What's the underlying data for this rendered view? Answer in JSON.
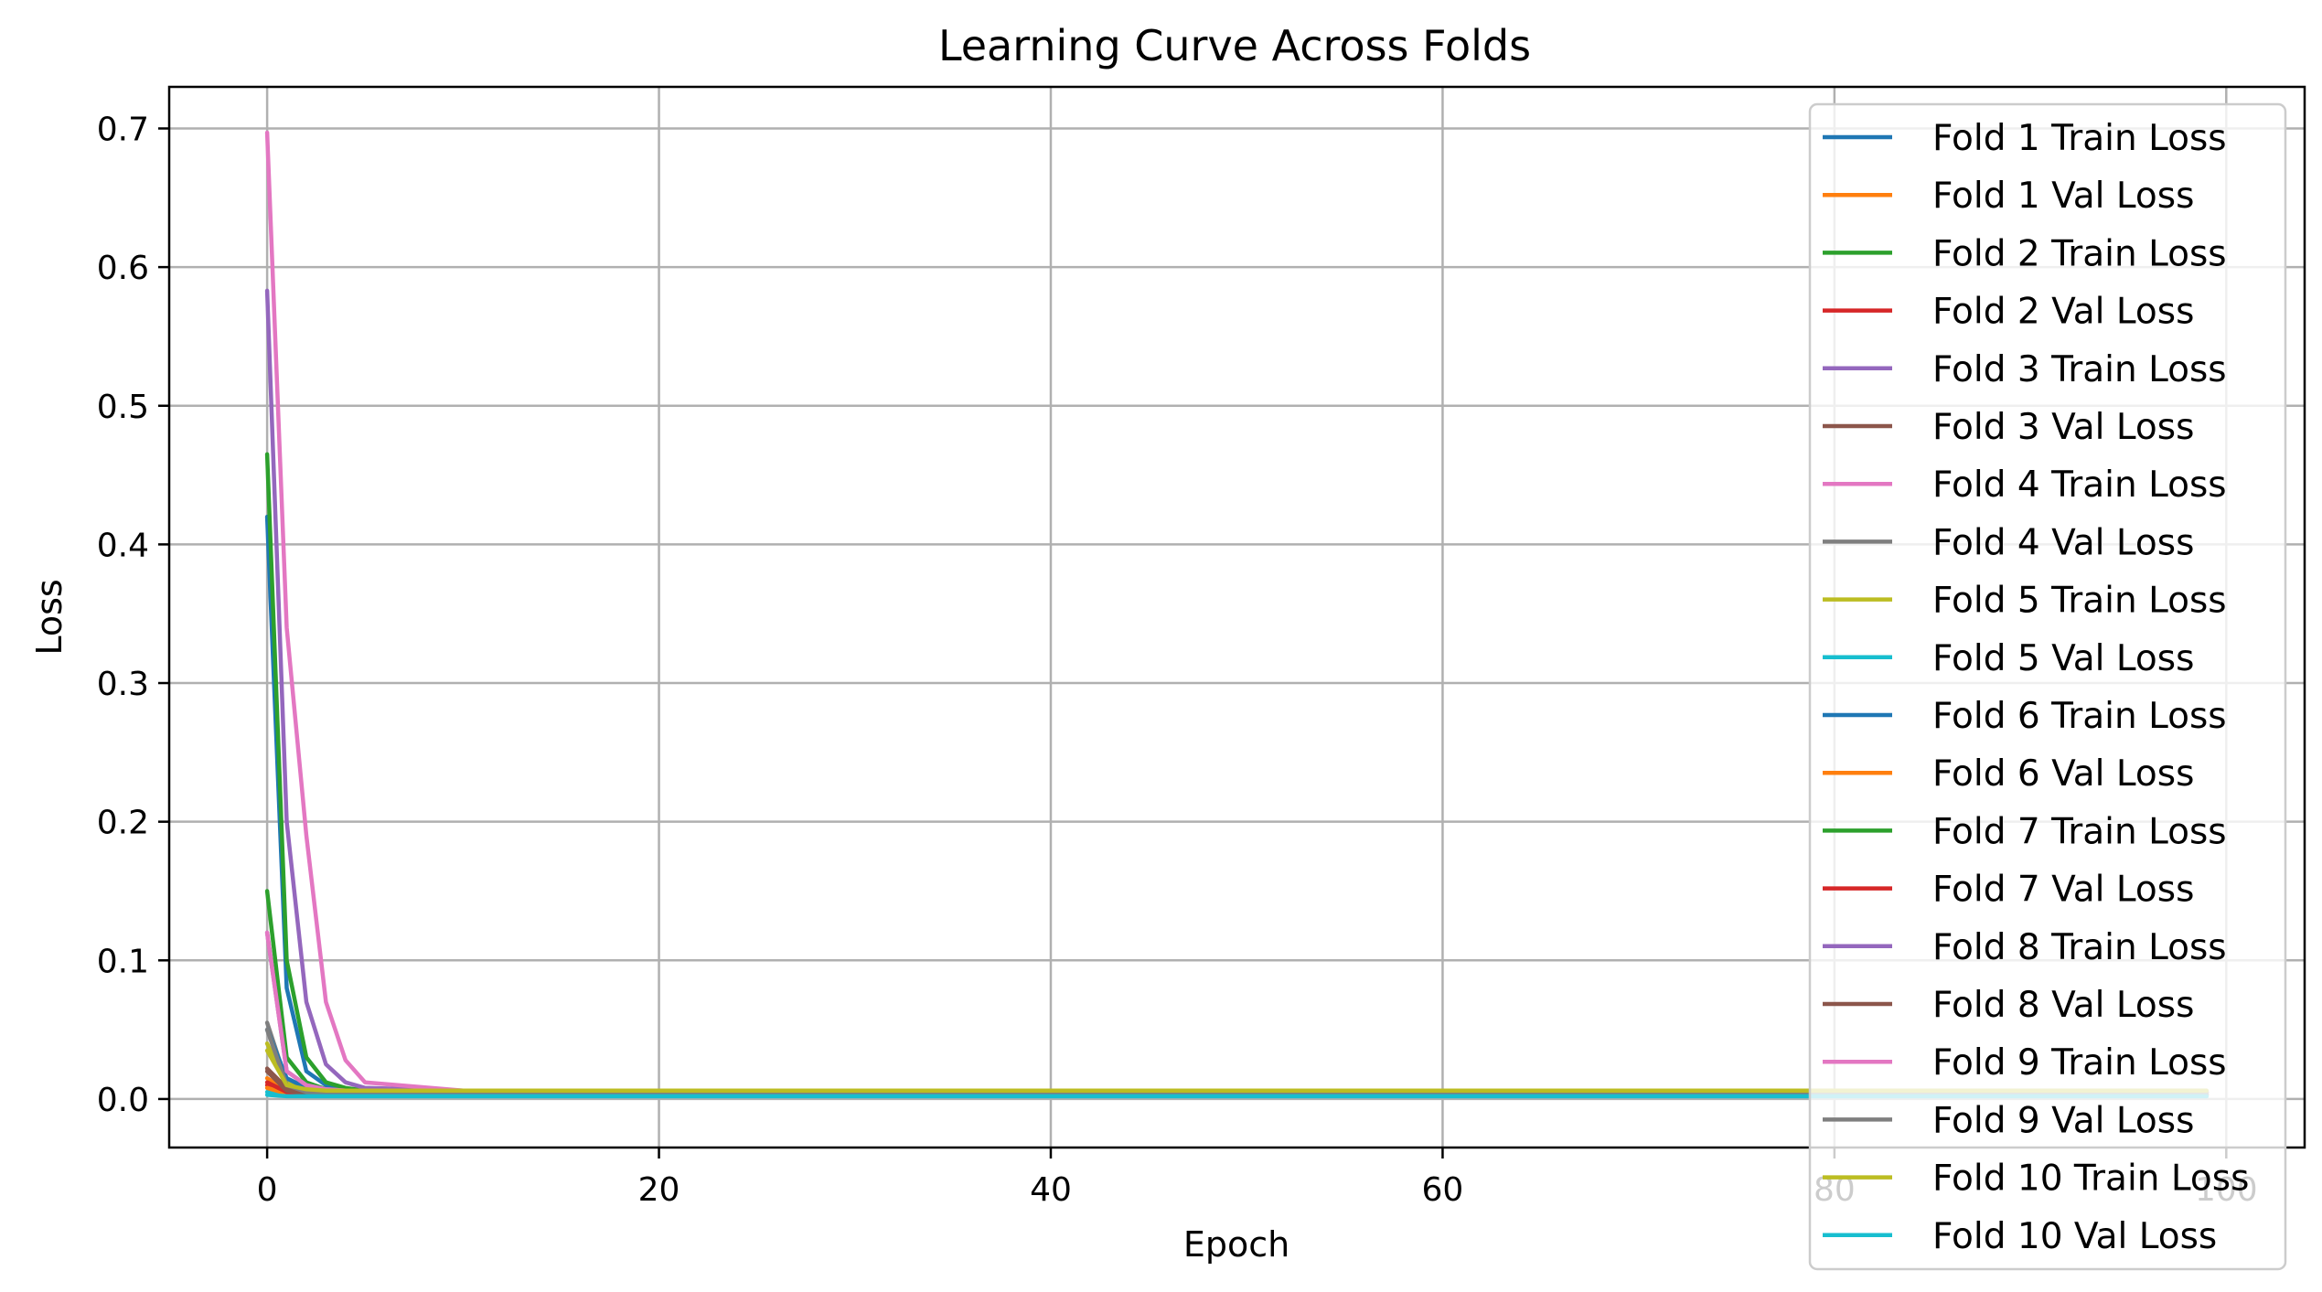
{
  "chart_data": {
    "type": "line",
    "title": "Learning Curve Across Folds",
    "xlabel": "Epoch",
    "ylabel": "Loss",
    "xlim": [
      -5,
      104
    ],
    "ylim": [
      -0.035,
      0.73
    ],
    "xticks": [
      0,
      20,
      40,
      60,
      80,
      100
    ],
    "yticks": [
      0.0,
      0.1,
      0.2,
      0.3,
      0.4,
      0.5,
      0.6,
      0.7
    ],
    "xtick_labels": [
      "0",
      "20",
      "40",
      "60",
      "80",
      "100"
    ],
    "ytick_labels": [
      "0.0",
      "0.1",
      "0.2",
      "0.3",
      "0.4",
      "0.5",
      "0.6",
      "0.7"
    ],
    "grid": true,
    "legend_position": "right",
    "x": [
      0,
      1,
      2,
      3,
      4,
      5,
      10,
      20,
      40,
      60,
      80,
      99
    ],
    "series": [
      {
        "name": "Fold 1 Train Loss",
        "color": "#1f77b4",
        "values": [
          0.42,
          0.08,
          0.02,
          0.01,
          0.007,
          0.006,
          0.005,
          0.005,
          0.005,
          0.005,
          0.005,
          0.005
        ]
      },
      {
        "name": "Fold 1 Val Loss",
        "color": "#ff7f0e",
        "values": [
          0.015,
          0.006,
          0.004,
          0.003,
          0.003,
          0.003,
          0.003,
          0.003,
          0.003,
          0.003,
          0.003,
          0.003
        ]
      },
      {
        "name": "Fold 2 Train Loss",
        "color": "#2ca02c",
        "values": [
          0.465,
          0.1,
          0.03,
          0.012,
          0.008,
          0.006,
          0.005,
          0.005,
          0.005,
          0.005,
          0.005,
          0.005
        ]
      },
      {
        "name": "Fold 2 Val Loss",
        "color": "#d62728",
        "values": [
          0.01,
          0.005,
          0.004,
          0.003,
          0.003,
          0.003,
          0.003,
          0.003,
          0.003,
          0.003,
          0.003,
          0.003
        ]
      },
      {
        "name": "Fold 3 Train Loss",
        "color": "#9467bd",
        "values": [
          0.583,
          0.2,
          0.07,
          0.025,
          0.012,
          0.008,
          0.006,
          0.005,
          0.005,
          0.005,
          0.005,
          0.005
        ]
      },
      {
        "name": "Fold 3 Val Loss",
        "color": "#8c564b",
        "values": [
          0.022,
          0.008,
          0.005,
          0.004,
          0.004,
          0.004,
          0.004,
          0.004,
          0.004,
          0.004,
          0.004,
          0.004
        ]
      },
      {
        "name": "Fold 4 Train Loss",
        "color": "#e377c2",
        "values": [
          0.697,
          0.34,
          0.19,
          0.07,
          0.028,
          0.012,
          0.006,
          0.005,
          0.005,
          0.005,
          0.005,
          0.005
        ]
      },
      {
        "name": "Fold 4 Val Loss",
        "color": "#7f7f7f",
        "values": [
          0.055,
          0.012,
          0.006,
          0.004,
          0.004,
          0.004,
          0.004,
          0.004,
          0.004,
          0.004,
          0.004,
          0.004
        ]
      },
      {
        "name": "Fold 5 Train Loss",
        "color": "#bcbd22",
        "values": [
          0.04,
          0.012,
          0.008,
          0.006,
          0.006,
          0.006,
          0.005,
          0.005,
          0.005,
          0.005,
          0.005,
          0.005
        ]
      },
      {
        "name": "Fold 5 Val Loss",
        "color": "#17becf",
        "values": [
          0.005,
          0.003,
          0.002,
          0.002,
          0.002,
          0.002,
          0.002,
          0.002,
          0.002,
          0.002,
          0.002,
          0.002
        ]
      },
      {
        "name": "Fold 6 Train Loss",
        "color": "#1f77b4",
        "values": [
          0.05,
          0.015,
          0.008,
          0.006,
          0.005,
          0.005,
          0.005,
          0.005,
          0.005,
          0.005,
          0.005,
          0.005
        ]
      },
      {
        "name": "Fold 6 Val Loss",
        "color": "#ff7f0e",
        "values": [
          0.008,
          0.004,
          0.003,
          0.003,
          0.003,
          0.003,
          0.003,
          0.003,
          0.003,
          0.003,
          0.003,
          0.003
        ]
      },
      {
        "name": "Fold 7 Train Loss",
        "color": "#2ca02c",
        "values": [
          0.15,
          0.03,
          0.012,
          0.007,
          0.006,
          0.005,
          0.005,
          0.005,
          0.005,
          0.005,
          0.005,
          0.005
        ]
      },
      {
        "name": "Fold 7 Val Loss",
        "color": "#d62728",
        "values": [
          0.012,
          0.005,
          0.003,
          0.003,
          0.003,
          0.003,
          0.003,
          0.003,
          0.003,
          0.003,
          0.003,
          0.003
        ]
      },
      {
        "name": "Fold 8 Train Loss",
        "color": "#9467bd",
        "values": [
          0.12,
          0.02,
          0.01,
          0.007,
          0.006,
          0.005,
          0.005,
          0.005,
          0.005,
          0.005,
          0.005,
          0.005
        ]
      },
      {
        "name": "Fold 8 Val Loss",
        "color": "#8c564b",
        "values": [
          0.02,
          0.006,
          0.004,
          0.003,
          0.003,
          0.003,
          0.003,
          0.003,
          0.003,
          0.003,
          0.003,
          0.003
        ]
      },
      {
        "name": "Fold 9 Train Loss",
        "color": "#e377c2",
        "values": [
          0.12,
          0.02,
          0.01,
          0.007,
          0.006,
          0.006,
          0.005,
          0.005,
          0.005,
          0.005,
          0.005,
          0.005
        ]
      },
      {
        "name": "Fold 9 Val Loss",
        "color": "#7f7f7f",
        "values": [
          0.05,
          0.01,
          0.005,
          0.004,
          0.004,
          0.004,
          0.004,
          0.004,
          0.004,
          0.004,
          0.004,
          0.004
        ]
      },
      {
        "name": "Fold 10 Train Loss",
        "color": "#bcbd22",
        "values": [
          0.035,
          0.01,
          0.007,
          0.006,
          0.006,
          0.006,
          0.006,
          0.006,
          0.006,
          0.006,
          0.006,
          0.006
        ]
      },
      {
        "name": "Fold 10 Val Loss",
        "color": "#17becf",
        "values": [
          0.003,
          0.002,
          0.002,
          0.002,
          0.002,
          0.002,
          0.002,
          0.002,
          0.002,
          0.002,
          0.002,
          0.002
        ]
      }
    ]
  }
}
